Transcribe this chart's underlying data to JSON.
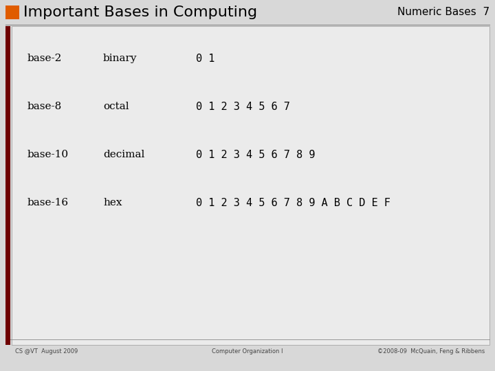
{
  "title": "Important Bases in Computing",
  "subtitle": "Numeric Bases  7",
  "bg_color": "#d8d8d8",
  "content_bg": "#e8e8e8",
  "orange_rect_color": "#e05c00",
  "dark_red_bar": "#6e0000",
  "title_color": "#000000",
  "subtitle_color": "#000000",
  "footer_left": "CS @VT  August 2009",
  "footer_center": "Computer Organization I",
  "footer_right": "©2008-09  McQuain, Feng & Ribbens",
  "rows": [
    {
      "base": "base-2",
      "name": "binary",
      "digits": "0 1"
    },
    {
      "base": "base-8",
      "name": "octal",
      "digits": "0 1 2 3 4 5 6 7"
    },
    {
      "base": "base-10",
      "name": "decimal",
      "digits": "0 1 2 3 4 5 6 7 8 9"
    },
    {
      "base": "base-16",
      "name": "hex",
      "digits": "0 1 2 3 4 5 6 7 8 9 A B C D E F"
    }
  ]
}
